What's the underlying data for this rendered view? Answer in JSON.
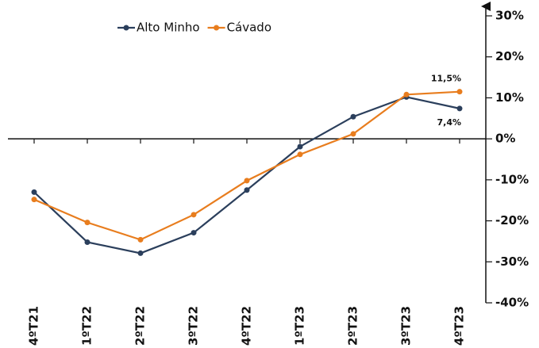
{
  "chart_data": {
    "type": "line",
    "categories": [
      "4ºT21",
      "1ºT22",
      "2ºT22",
      "3ºT22",
      "4ºT22",
      "1ºT23",
      "2ºT23",
      "3ºT23",
      "4ºT23"
    ],
    "series": [
      {
        "name": "Alto Minho",
        "color": "#2b3f5c",
        "values": [
          -13.0,
          -25.2,
          -27.9,
          -22.9,
          -12.5,
          -1.9,
          5.4,
          10.2,
          7.4
        ],
        "value_labels": [
          null,
          null,
          null,
          null,
          null,
          null,
          null,
          null,
          "7,4%"
        ]
      },
      {
        "name": "Cávado",
        "color": "#e87d1e",
        "values": [
          -14.8,
          -20.4,
          -24.6,
          -18.5,
          -10.2,
          -3.8,
          1.2,
          10.8,
          11.5
        ],
        "value_labels": [
          null,
          null,
          null,
          null,
          null,
          null,
          null,
          null,
          "11,5%"
        ]
      }
    ],
    "ylim": [
      -40,
      30
    ],
    "yticks": [
      {
        "value": -40,
        "label": "-40%"
      },
      {
        "value": -30,
        "label": "-30%"
      },
      {
        "value": -20,
        "label": "-20%"
      },
      {
        "value": -10,
        "label": "-10%"
      },
      {
        "value": 0,
        "label": "0%"
      },
      {
        "value": 10,
        "label": "10%"
      },
      {
        "value": 20,
        "label": "20%"
      },
      {
        "value": 30,
        "label": "30%"
      }
    ],
    "y_axis_side": "right",
    "legend": "top-left"
  }
}
